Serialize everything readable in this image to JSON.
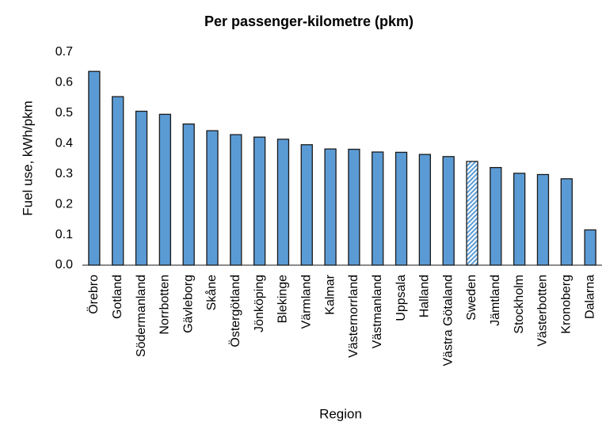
{
  "chart_data": {
    "type": "bar",
    "title": "Per passenger-kilometre (pkm)",
    "x_label": "Region",
    "y_label": "Fuel use, kWh/pkm",
    "categories": [
      "Örebro",
      "Gotland",
      "Södermanland",
      "Norrbotten",
      "Gävleborg",
      "Skåne",
      "Östergötland",
      "Jönköping",
      "Blekinge",
      "Värmland",
      "Kalmar",
      "Västernorrland",
      "Västmanland",
      "Uppsala",
      "Halland",
      "Västra Götaland",
      "Sweden",
      "Jämtland",
      "Stockholm",
      "Västerbotten",
      "Kronoberg",
      "Dalarna"
    ],
    "values": [
      0.637,
      0.554,
      0.506,
      0.496,
      0.464,
      0.442,
      0.429,
      0.421,
      0.414,
      0.396,
      0.382,
      0.381,
      0.372,
      0.371,
      0.364,
      0.357,
      0.341,
      0.321,
      0.302,
      0.298,
      0.284,
      0.116
    ],
    "fills": [
      "solid",
      "solid",
      "solid",
      "solid",
      "solid",
      "solid",
      "solid",
      "solid",
      "solid",
      "solid",
      "solid",
      "solid",
      "solid",
      "solid",
      "solid",
      "solid",
      "hatched",
      "solid",
      "solid",
      "solid",
      "solid",
      "solid"
    ],
    "color": "#5b9bd5",
    "ylim": [
      0,
      0.7
    ],
    "yticks": [
      {
        "value": 0,
        "label": "0.0"
      },
      0.1,
      0.2,
      0.3,
      0.4,
      0.5,
      0.6,
      0.7
    ],
    "grid": false
  }
}
